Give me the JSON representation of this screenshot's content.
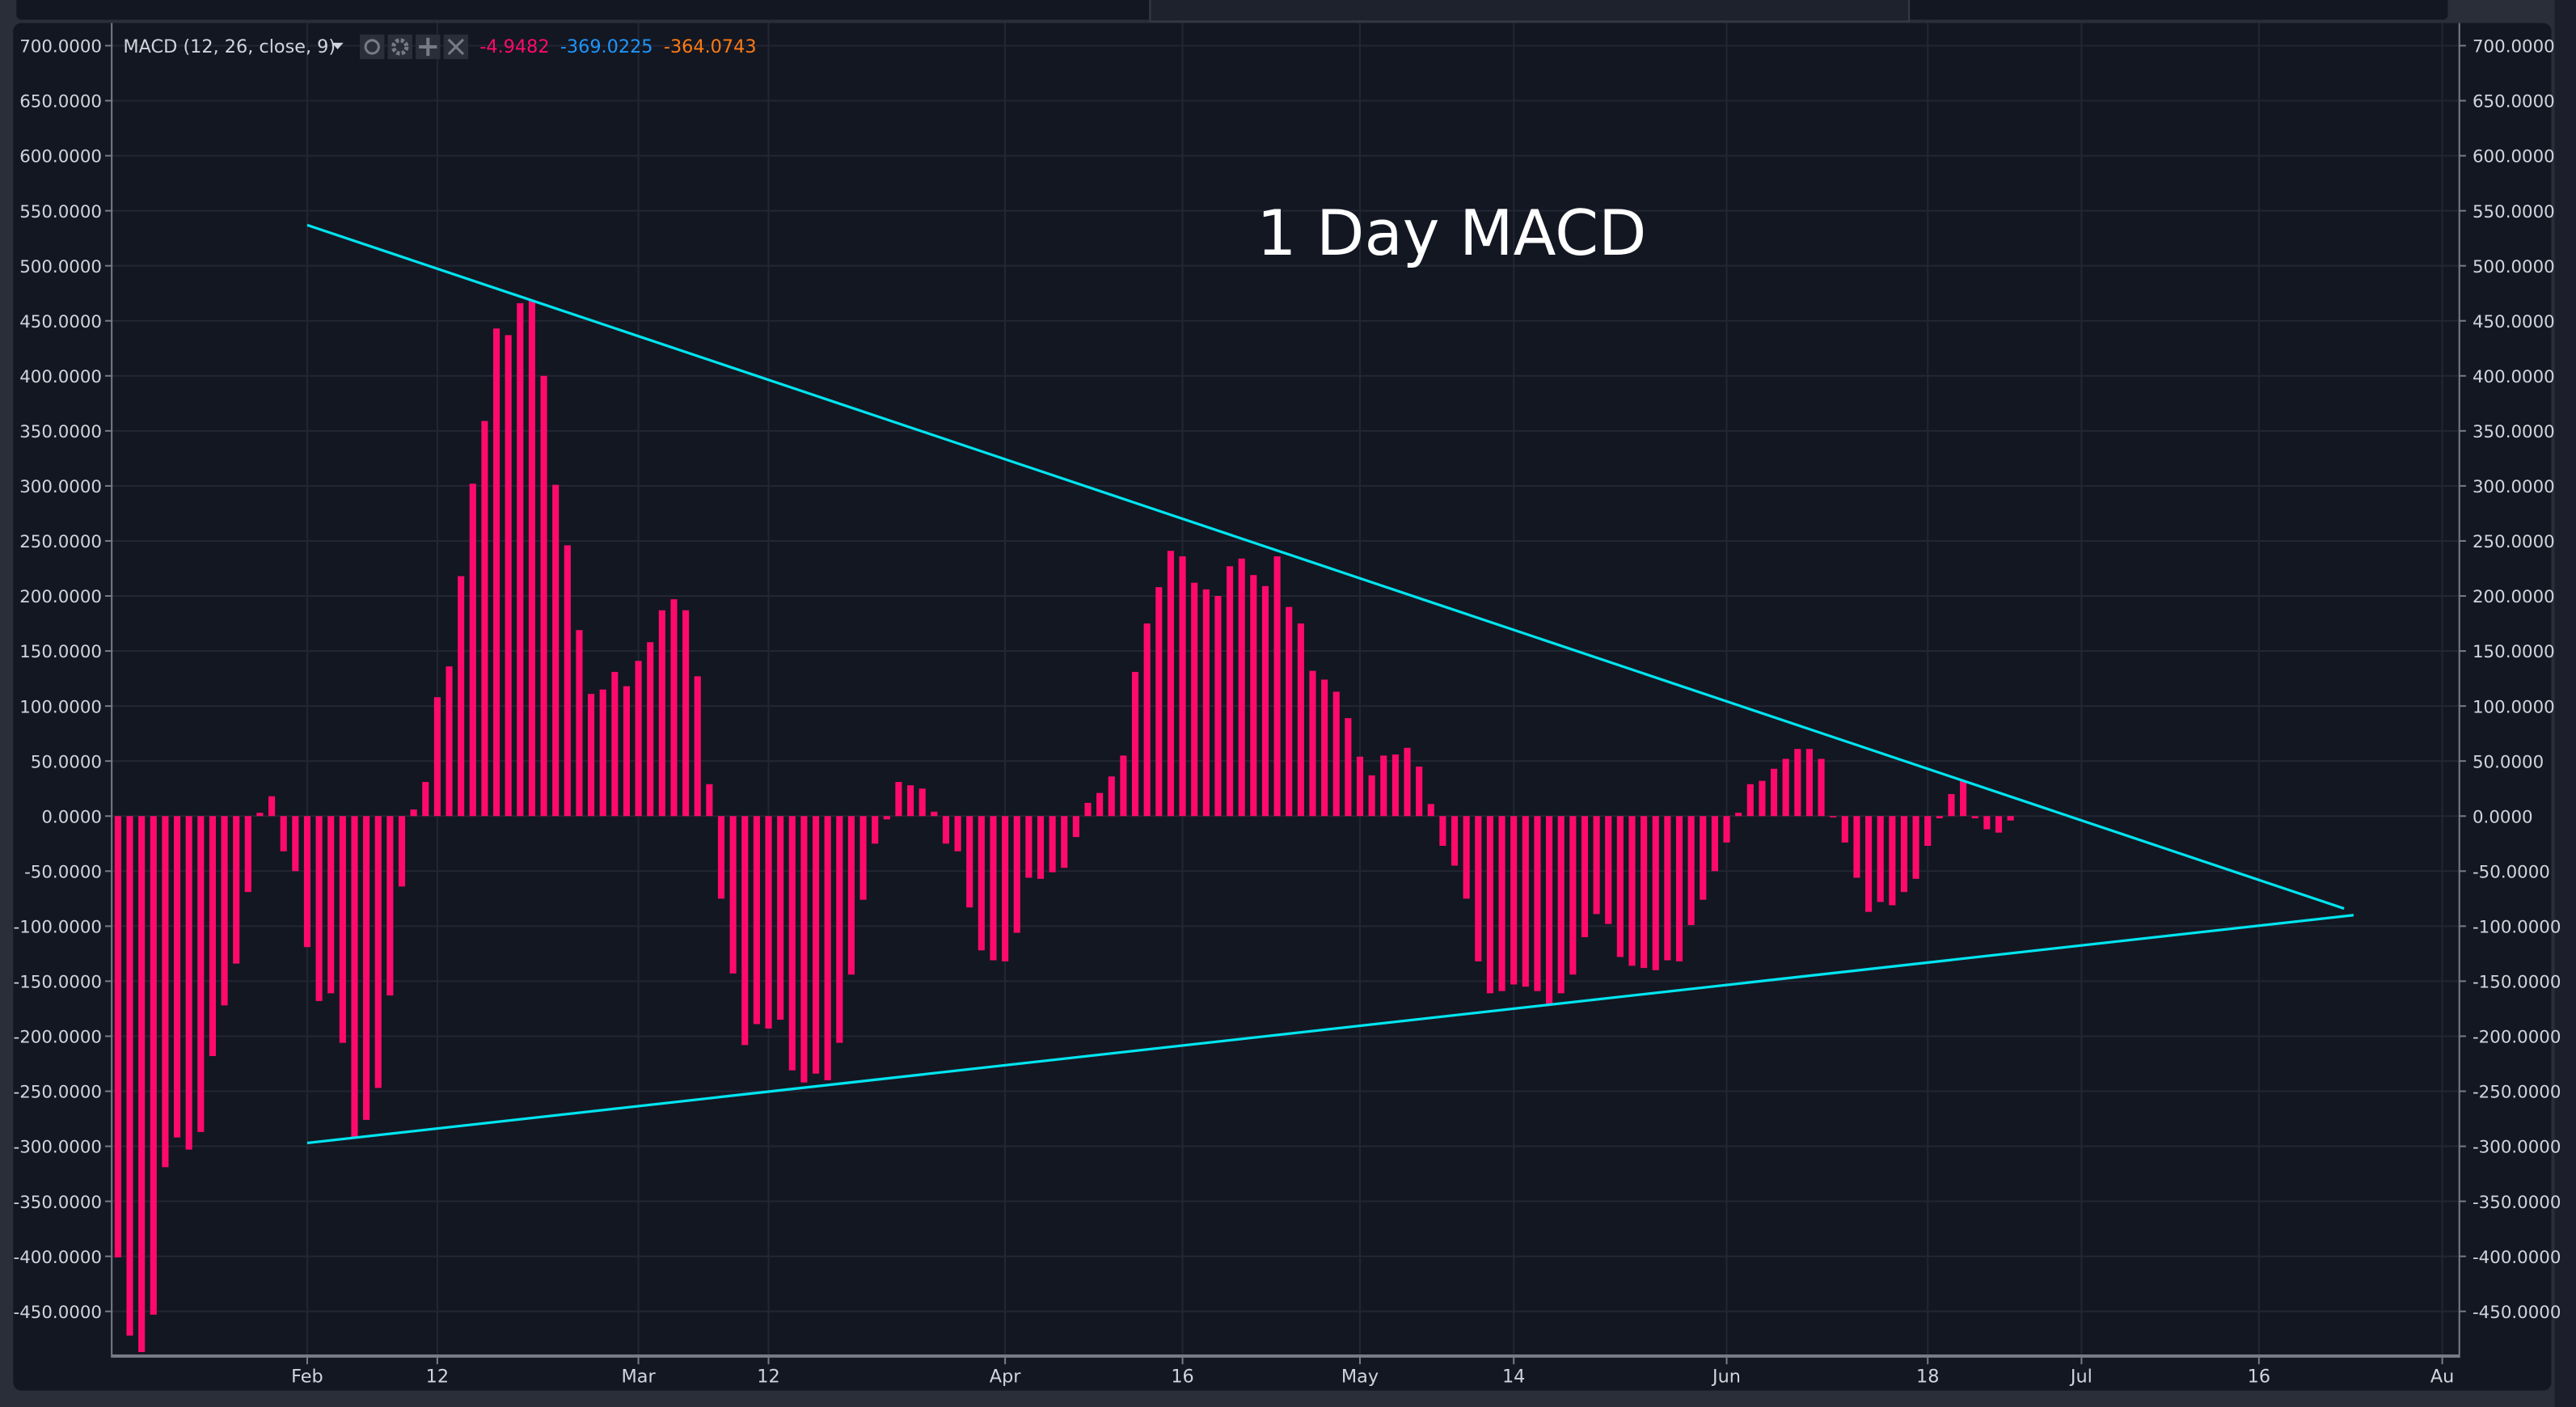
{
  "legend": {
    "indicator": "MACD (12, 26, close, 9)",
    "histogram_value": "-4.9482",
    "macd_value": "-369.0225",
    "signal_value": "-364.0743",
    "colors": {
      "histogram": "#ff0a6c",
      "macd": "#1e96fc",
      "signal": "#ff7a14"
    },
    "icons": [
      "eye-icon",
      "gear-icon",
      "plus-icon",
      "close-icon"
    ]
  },
  "chart_data": {
    "type": "bar",
    "title": "1 Day MACD",
    "xlabel": "",
    "ylabel": "",
    "ylim": [
      -490,
      710
    ],
    "y_ticks": [
      "700.0000",
      "650.0000",
      "600.0000",
      "550.0000",
      "500.0000",
      "450.0000",
      "400.0000",
      "350.0000",
      "300.0000",
      "250.0000",
      "200.0000",
      "150.0000",
      "100.0000",
      "50.0000",
      "0.0000",
      "-50.0000",
      "-100.0000",
      "-150.0000",
      "-200.0000",
      "-250.0000",
      "-300.0000",
      "-350.0000",
      "-400.0000",
      "-450.0000"
    ],
    "y_tick_values": [
      700,
      650,
      600,
      550,
      500,
      450,
      400,
      350,
      300,
      250,
      200,
      150,
      100,
      50,
      0,
      -50,
      -100,
      -150,
      -200,
      -250,
      -300,
      -350,
      -400,
      -450
    ],
    "x_range_bar_index": [
      0.5,
      199.5
    ],
    "x_ticks": [
      {
        "label": "Feb",
        "index": 17
      },
      {
        "label": "12",
        "index": 28
      },
      {
        "label": "Mar",
        "index": 45
      },
      {
        "label": "12",
        "index": 56
      },
      {
        "label": "Apr",
        "index": 76
      },
      {
        "label": "16",
        "index": 91
      },
      {
        "label": "May",
        "index": 106
      },
      {
        "label": "14",
        "index": 119
      },
      {
        "label": "Jun",
        "index": 137
      },
      {
        "label": "18",
        "index": 154
      },
      {
        "label": "Jul",
        "index": 167
      },
      {
        "label": "16",
        "index": 182
      },
      {
        "label": "Au",
        "index": 197.5
      }
    ],
    "grid": true,
    "series": [
      {
        "name": "MACD Histogram",
        "color": "#ff0a6c",
        "values": [
          -401,
          -472,
          -487,
          -453,
          -319,
          -292,
          -303,
          -287,
          -218,
          -172,
          -134,
          -69,
          3,
          18,
          -32,
          -50,
          -119,
          -168,
          -161,
          -206,
          -292,
          -276,
          -247,
          -163,
          -64,
          6,
          31,
          108,
          136,
          218,
          302,
          359,
          443,
          437,
          466,
          468,
          400,
          301,
          246,
          169,
          111,
          115,
          131,
          118,
          141,
          158,
          187,
          197,
          187,
          127,
          29,
          -75,
          -143,
          -208,
          -189,
          -193,
          -185,
          -231,
          -242,
          -234,
          -240,
          -206,
          -144,
          -76,
          -25,
          -3,
          31,
          28,
          25,
          4,
          -25,
          -32,
          -83,
          -122,
          -131,
          -132,
          -106,
          -56,
          -57,
          -51,
          -47,
          -19,
          12,
          21,
          36,
          55,
          131,
          175,
          208,
          241,
          236,
          212,
          206,
          200,
          227,
          234,
          219,
          209,
          236,
          190,
          175,
          132,
          124,
          113,
          89,
          54,
          37,
          55,
          56,
          62,
          45,
          11,
          -27,
          -45,
          -75,
          -132,
          -161,
          -159,
          -153,
          -155,
          -159,
          -172,
          -161,
          -144,
          -110,
          -89,
          -98,
          -128,
          -136,
          -138,
          -140,
          -131,
          -132,
          -99,
          -76,
          -50,
          -24,
          3,
          29,
          32,
          43,
          52,
          61,
          61,
          52,
          0,
          -24,
          -56,
          -87,
          -78,
          -81,
          -69,
          -57,
          -27,
          -2,
          20,
          32,
          -2,
          -12,
          -15,
          -4
        ]
      }
    ],
    "trendlines": [
      {
        "name": "upper-trendline",
        "color": "#00e5f0",
        "from": [
          17,
          537
        ],
        "to": [
          189.2,
          -84
        ]
      },
      {
        "name": "lower-trendline",
        "color": "#00e5f0",
        "from": [
          17,
          -297
        ],
        "to": [
          190,
          -90
        ]
      }
    ]
  }
}
